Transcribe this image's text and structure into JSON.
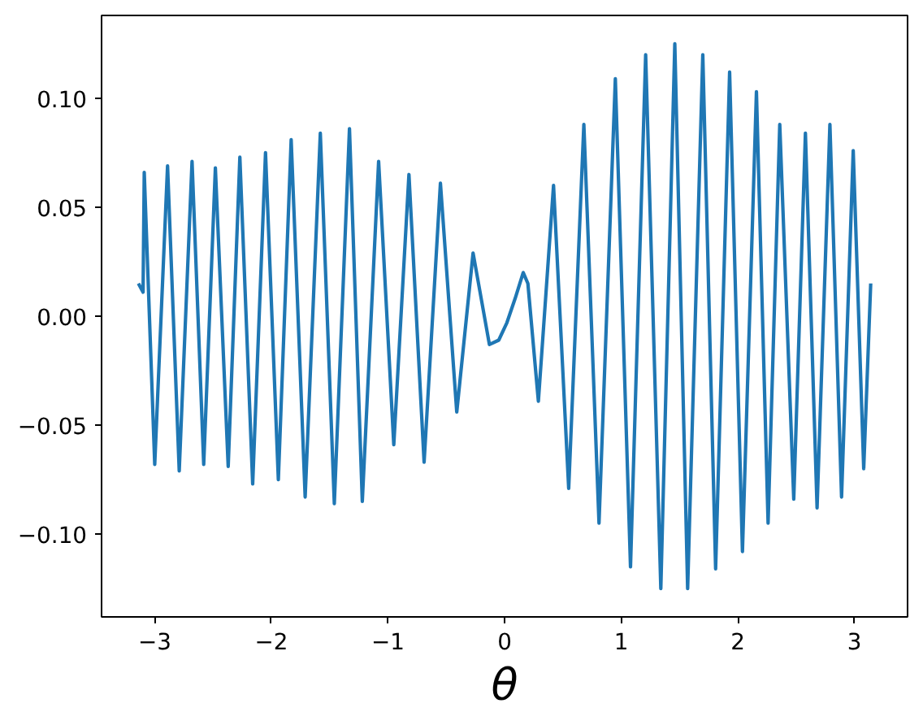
{
  "chart_data": {
    "type": "line",
    "xlabel": "θ",
    "xlim": [
      -3.456,
      3.456
    ],
    "ylim": [
      -0.138,
      0.138
    ],
    "xticks": [
      {
        "value": -3,
        "label": "−3"
      },
      {
        "value": -2,
        "label": "−2"
      },
      {
        "value": -1,
        "label": "−1"
      },
      0,
      1,
      2,
      3
    ],
    "yticks": [
      {
        "value": -0.1,
        "label": "−0.10"
      },
      {
        "value": -0.05,
        "label": "−0.05"
      },
      {
        "value": 0,
        "label": "0.00"
      },
      {
        "value": 0.05,
        "label": "0.05"
      },
      {
        "value": 0.1,
        "label": "0.10"
      }
    ],
    "grid": false,
    "marker": "none",
    "line_style": "solid",
    "x": [
      -3.14,
      -3.1,
      -3.09,
      -3.0,
      -2.89,
      -2.79,
      -2.68,
      -2.58,
      -2.48,
      -2.37,
      -2.27,
      -2.16,
      -2.05,
      -1.94,
      -1.83,
      -1.71,
      -1.58,
      -1.46,
      -1.33,
      -1.22,
      -1.08,
      -0.95,
      -0.82,
      -0.69,
      -0.55,
      -0.41,
      -0.27,
      -0.13,
      -0.05,
      0.02,
      0.09,
      0.16,
      0.2,
      0.29,
      0.42,
      0.55,
      0.68,
      0.81,
      0.95,
      1.08,
      1.21,
      1.34,
      1.46,
      1.57,
      1.7,
      1.81,
      1.93,
      2.04,
      2.16,
      2.26,
      2.36,
      2.48,
      2.58,
      2.68,
      2.79,
      2.89,
      2.99,
      3.08,
      3.14
    ],
    "series": [
      {
        "color": "#1f77b4",
        "values": [
          0.015,
          0.011,
          0.066,
          -0.068,
          0.069,
          -0.071,
          0.071,
          -0.068,
          0.068,
          -0.069,
          0.073,
          -0.077,
          0.075,
          -0.075,
          0.081,
          -0.083,
          0.084,
          -0.086,
          0.086,
          -0.085,
          0.071,
          -0.059,
          0.065,
          -0.067,
          0.061,
          -0.044,
          0.029,
          -0.013,
          -0.011,
          -0.003,
          0.008,
          0.02,
          0.015,
          -0.039,
          0.06,
          -0.079,
          0.088,
          -0.095,
          0.109,
          -0.115,
          0.12,
          -0.125,
          0.125,
          -0.125,
          0.12,
          -0.116,
          0.112,
          -0.108,
          0.103,
          -0.095,
          0.088,
          -0.084,
          0.084,
          -0.088,
          0.088,
          -0.083,
          0.076,
          -0.07,
          0.015
        ]
      }
    ]
  }
}
